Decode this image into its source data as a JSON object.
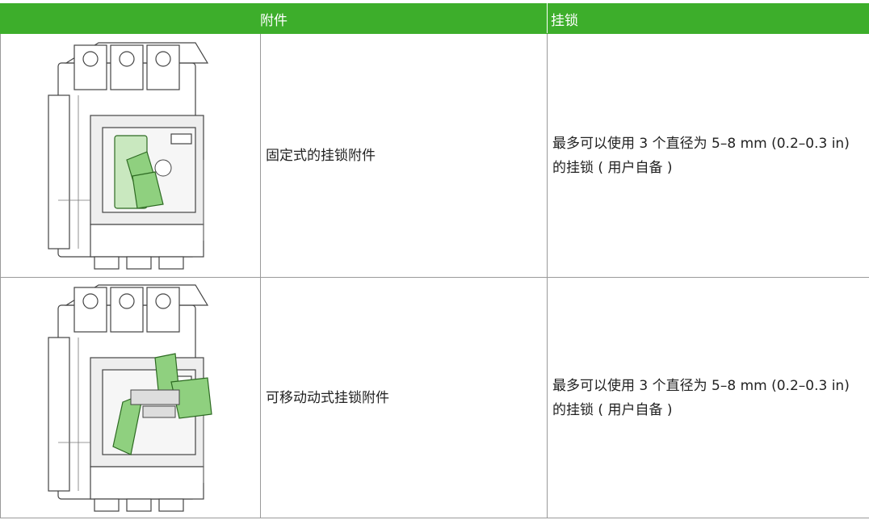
{
  "table": {
    "header": [
      "附件",
      "挂锁"
    ],
    "rows": [
      [
        "固定式的挂锁附件",
        "最多可以使用 3 个直径为 5–8 mm (0.2–0.3 in) 的挂锁 ( 用户自备 )"
      ],
      [
        "可移动动式挂锁附件",
        "最多可以使用 3 个直径为 5–8 mm (0.2–0.3 in) 的挂锁 ( 用户自备 )"
      ]
    ]
  }
}
